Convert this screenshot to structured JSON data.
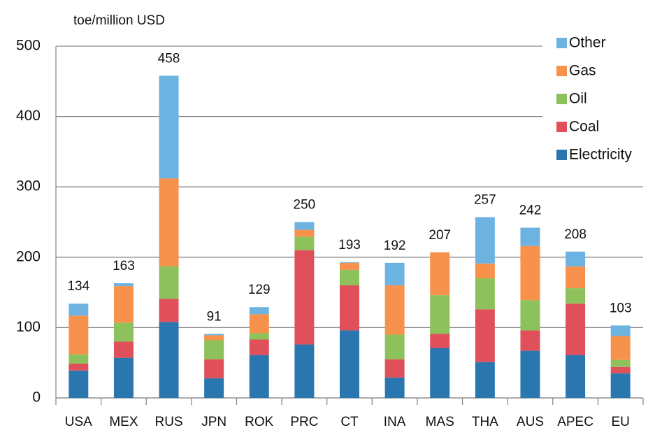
{
  "chart_data": {
    "type": "stacked_bar",
    "y_label": "toe/million USD",
    "categories": [
      "USA",
      "MEX",
      "RUS",
      "JPN",
      "ROK",
      "PRC",
      "CT",
      "INA",
      "MAS",
      "THA",
      "AUS",
      "APEC",
      "EU"
    ],
    "series": [
      {
        "name": "Electricity",
        "color": "#2a77b0",
        "values": [
          39,
          57,
          108,
          28,
          61,
          76,
          96,
          29,
          71,
          51,
          67,
          61,
          35
        ]
      },
      {
        "name": "Coal",
        "color": "#e0505a",
        "values": [
          10,
          23,
          33,
          27,
          22,
          134,
          64,
          26,
          20,
          75,
          29,
          73,
          9
        ]
      },
      {
        "name": "Oil",
        "color": "#8dc15b",
        "values": [
          13,
          27,
          46,
          27,
          9,
          19,
          22,
          35,
          55,
          44,
          43,
          22,
          10
        ]
      },
      {
        "name": "Gas",
        "color": "#f7924c",
        "values": [
          55,
          52,
          125,
          7,
          27,
          10,
          10,
          70,
          61,
          21,
          77,
          31,
          34
        ]
      },
      {
        "name": "Other",
        "color": "#6db3e2",
        "values": [
          17,
          4,
          146,
          2,
          10,
          11,
          1,
          32,
          0,
          66,
          26,
          21,
          15
        ]
      }
    ],
    "totals": [
      134,
      163,
      458,
      91,
      129,
      250,
      193,
      192,
      207,
      257,
      242,
      208,
      103
    ],
    "ylim": [
      0,
      500
    ],
    "yticks": [
      0,
      100,
      200,
      300,
      400,
      500
    ],
    "grid": true,
    "legend": "top-right"
  }
}
